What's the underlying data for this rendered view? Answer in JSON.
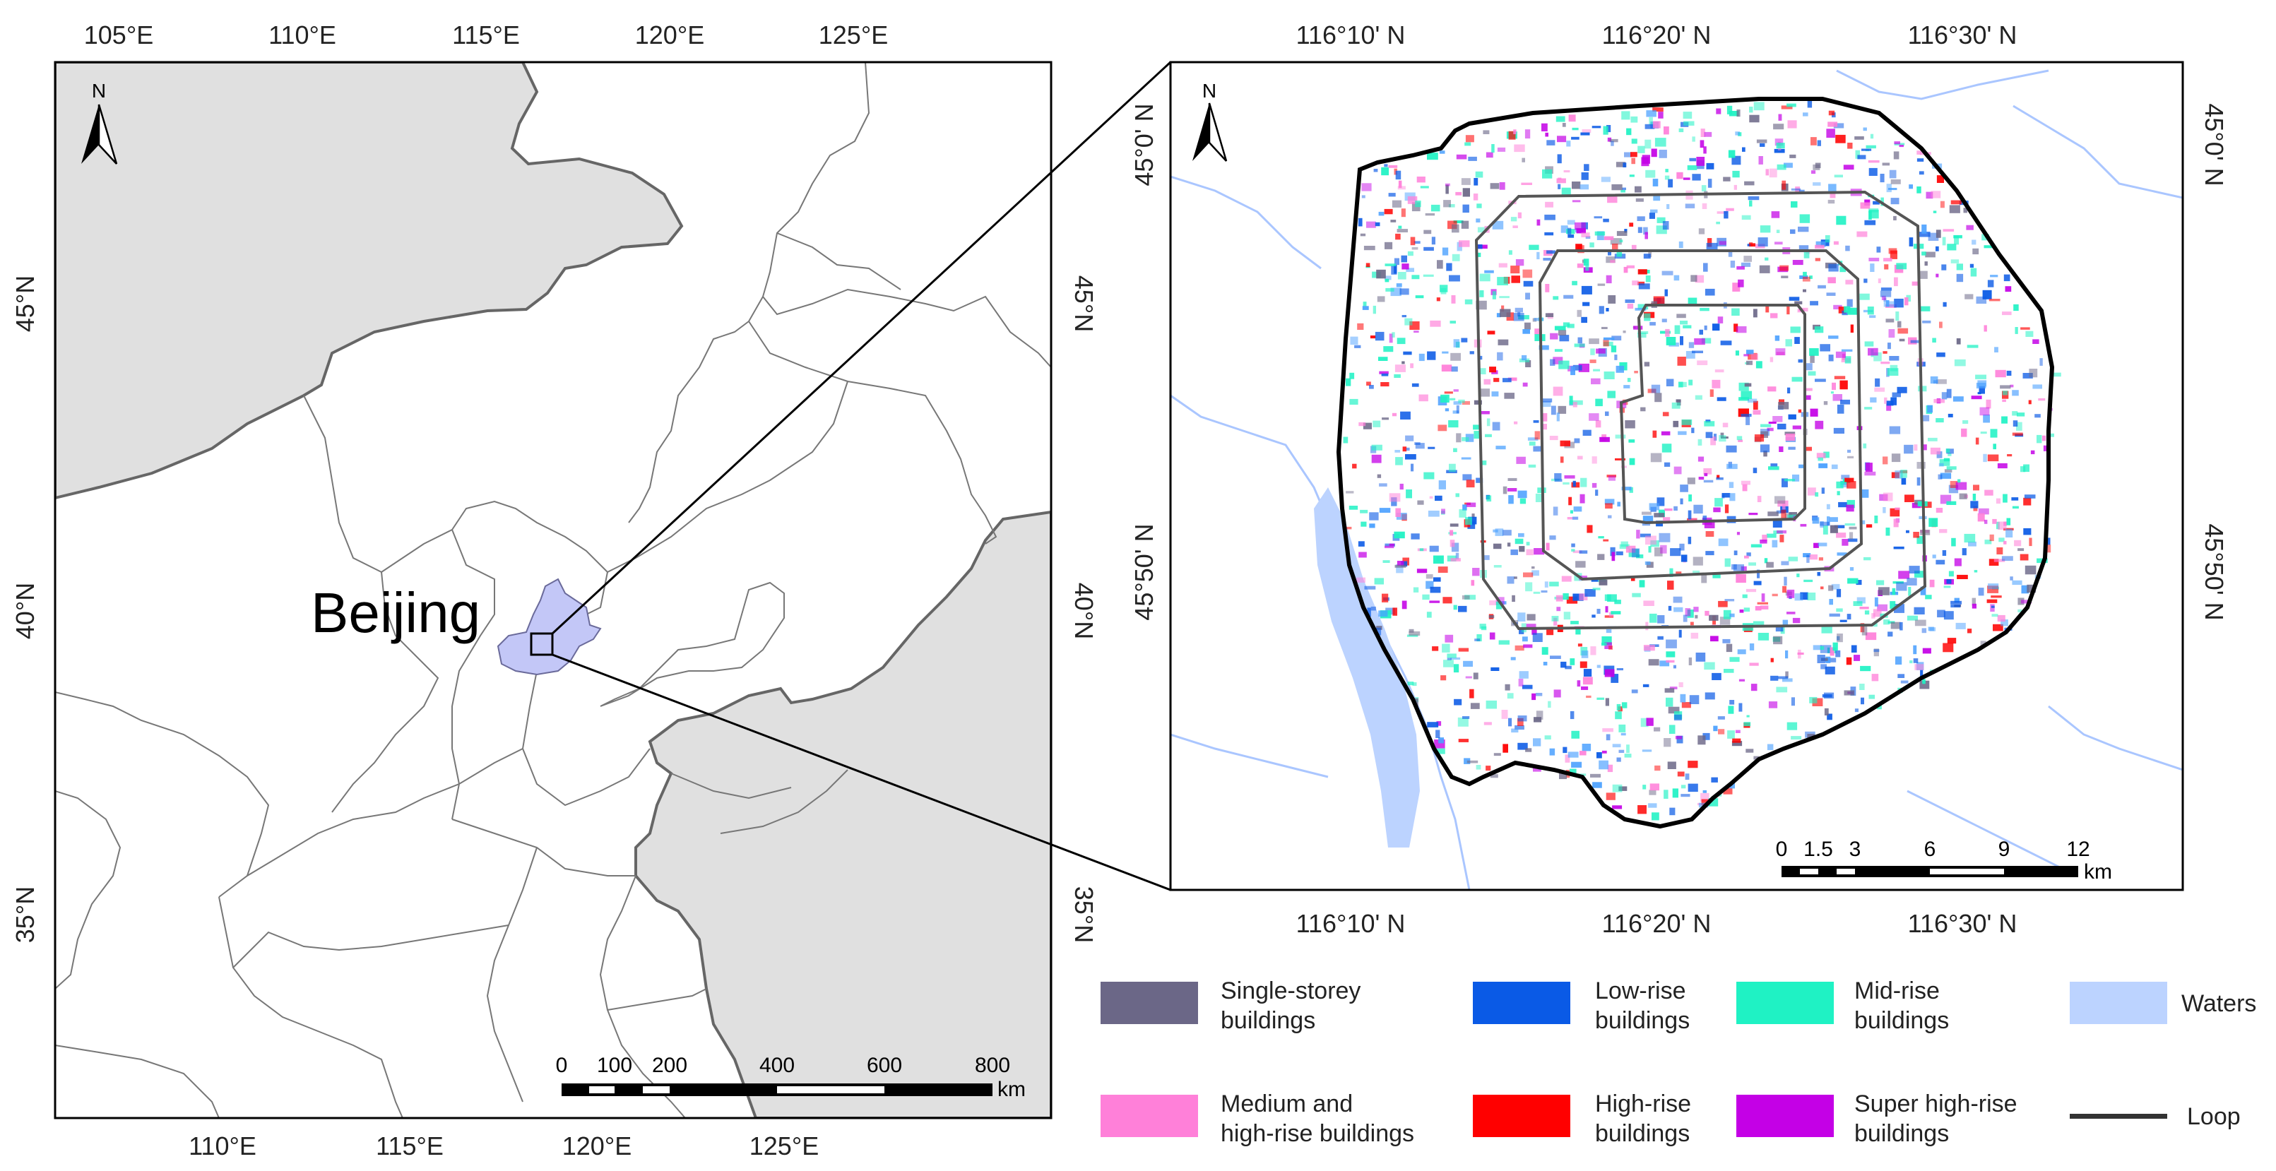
{
  "left_map": {
    "top_ticks": [
      "105°E",
      "110°E",
      "115°E",
      "120°E",
      "125°E"
    ],
    "bottom_ticks": [
      "110°E",
      "115°E",
      "120°E",
      "125°E"
    ],
    "left_ticks": [
      "45°N",
      "40°N",
      "35°N"
    ],
    "right_ticks": [
      "45°N",
      "40°N",
      "35°N"
    ],
    "place_label": "Beijing",
    "north_label": "N",
    "scale": {
      "labels": [
        "0",
        "100",
        "200",
        "400",
        "600",
        "800"
      ],
      "unit": "km"
    },
    "colors": {
      "land": "#e0e0e0",
      "beijing": "#c3c7f7",
      "boundary": "#777777"
    }
  },
  "right_map": {
    "top_ticks": [
      "116°10' N",
      "116°20' N",
      "116°30' N"
    ],
    "bottom_ticks": [
      "116°10' N",
      "116°20' N",
      "116°30' N"
    ],
    "left_ticks": [
      "45°0' N",
      "45°50' N"
    ],
    "right_ticks": [
      "45°0' N",
      "45°50' N"
    ],
    "north_label": "N",
    "scale": {
      "labels": [
        "0",
        "1.5",
        "3",
        "6",
        "9",
        "12"
      ],
      "unit": "km"
    }
  },
  "legend": [
    {
      "line1": "Single-storey",
      "line2": "buildings",
      "color": "#6b6787",
      "kind": "box"
    },
    {
      "line1": "Low-rise",
      "line2": "buildings",
      "color": "#0a5ae6",
      "kind": "box"
    },
    {
      "line1": "Mid-rise",
      "line2": "buildings",
      "color": "#1ff2c4",
      "kind": "box"
    },
    {
      "line1": "Waters",
      "line2": "",
      "color": "#bcd3ff",
      "kind": "box"
    },
    {
      "line1": "Medium and",
      "line2": "high-rise buildings",
      "color": "#ff80d9",
      "kind": "box"
    },
    {
      "line1": "High-rise",
      "line2": "buildings",
      "color": "#ff0000",
      "kind": "box"
    },
    {
      "line1": "Super high-rise",
      "line2": "buildings",
      "color": "#c400e6",
      "kind": "box"
    },
    {
      "line1": "Loop",
      "line2": "",
      "color": "#333333",
      "kind": "line"
    }
  ]
}
